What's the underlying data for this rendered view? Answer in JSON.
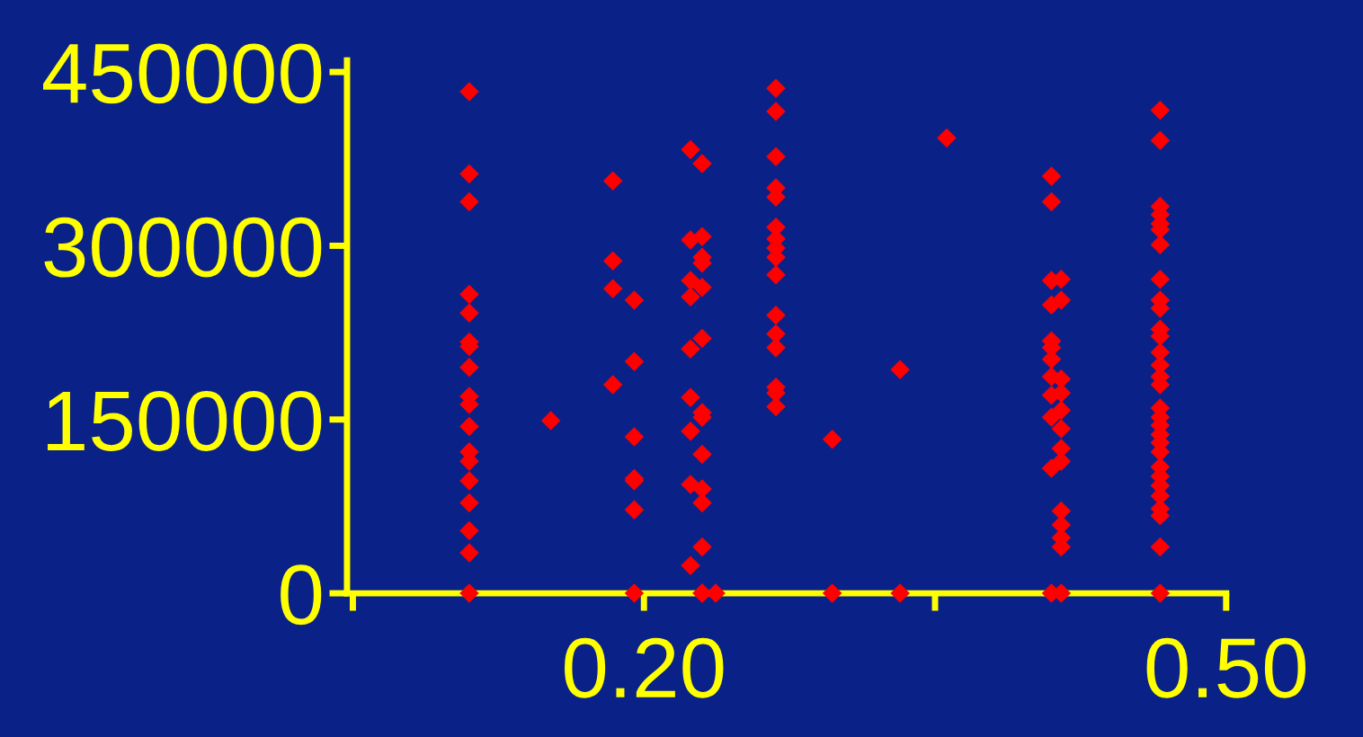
{
  "chart_data": {
    "type": "scatter",
    "marker": "diamond",
    "grid": false,
    "xlim": [
      0.047,
      0.5
    ],
    "ylim": [
      0,
      460000
    ],
    "xticks": [
      {
        "value": 0.05,
        "label": null
      },
      {
        "value": 0.2,
        "label": "0.20"
      },
      {
        "value": 0.35,
        "label": null
      },
      {
        "value": 0.5,
        "label": "0.50"
      }
    ],
    "yticks": [
      0,
      150000,
      300000,
      450000
    ],
    "series": [
      {
        "color": "#ff0000",
        "x": [
          0.11,
          0.11,
          0.11,
          0.11,
          0.11,
          0.11,
          0.11,
          0.11,
          0.11,
          0.11,
          0.11,
          0.11,
          0.11,
          0.11,
          0.11,
          0.11,
          0.11,
          0.11,
          0.184,
          0.184,
          0.184,
          0.184,
          0.195,
          0.195,
          0.195,
          0.195,
          0.195,
          0.195,
          0.195,
          0.152,
          0.224,
          0.224,
          0.224,
          0.224,
          0.224,
          0.224,
          0.224,
          0.224,
          0.224,
          0.23,
          0.23,
          0.23,
          0.23,
          0.23,
          0.23,
          0.23,
          0.23,
          0.23,
          0.23,
          0.23,
          0.23,
          0.23,
          0.23,
          0.237,
          0.268,
          0.268,
          0.268,
          0.268,
          0.268,
          0.268,
          0.268,
          0.268,
          0.268,
          0.268,
          0.268,
          0.268,
          0.268,
          0.268,
          0.268,
          0.268,
          0.297,
          0.297,
          0.332,
          0.332,
          0.356,
          0.41,
          0.41,
          0.41,
          0.41,
          0.41,
          0.41,
          0.41,
          0.41,
          0.41,
          0.41,
          0.41,
          0.41,
          0.415,
          0.415,
          0.415,
          0.415,
          0.415,
          0.415,
          0.415,
          0.415,
          0.415,
          0.415,
          0.415,
          0.415,
          0.415,
          0.466,
          0.466,
          0.466,
          0.466,
          0.466,
          0.466,
          0.466,
          0.466,
          0.466,
          0.466,
          0.466,
          0.466,
          0.466,
          0.466,
          0.466,
          0.466,
          0.466,
          0.466,
          0.466,
          0.466,
          0.466,
          0.466,
          0.466,
          0.466,
          0.466,
          0.466,
          0.466,
          0.466,
          0.466,
          0.466
        ],
        "values": [
          433000,
          362000,
          338000,
          258000,
          242000,
          217000,
          213000,
          195000,
          170000,
          163000,
          144000,
          122000,
          114000,
          97000,
          78000,
          54000,
          35000,
          0,
          356000,
          287000,
          263000,
          180000,
          253000,
          200000,
          135000,
          99000,
          97000,
          72000,
          0,
          149000,
          383000,
          305000,
          270000,
          256000,
          211000,
          169000,
          140000,
          94000,
          24000,
          371000,
          308000,
          290000,
          285000,
          264000,
          220000,
          156000,
          152000,
          120000,
          90000,
          78000,
          40000,
          0,
          0,
          0,
          436000,
          416000,
          377000,
          350000,
          342000,
          316000,
          306000,
          298000,
          290000,
          275000,
          240000,
          224000,
          212000,
          178000,
          173000,
          161000,
          133000,
          0,
          193000,
          0,
          393000,
          360000,
          338000,
          270000,
          249000,
          218000,
          212000,
          202000,
          187000,
          171000,
          152000,
          108000,
          0,
          271000,
          253000,
          185000,
          173000,
          158000,
          142000,
          125000,
          114000,
          71000,
          59000,
          48000,
          40000,
          0,
          417000,
          391000,
          334000,
          327000,
          319000,
          314000,
          301000,
          271000,
          253000,
          246000,
          228000,
          222000,
          208000,
          197000,
          187000,
          180000,
          160000,
          152000,
          145000,
          137000,
          130000,
          122000,
          109000,
          101000,
          93000,
          84000,
          73000,
          67000,
          40000,
          0
        ]
      }
    ]
  }
}
